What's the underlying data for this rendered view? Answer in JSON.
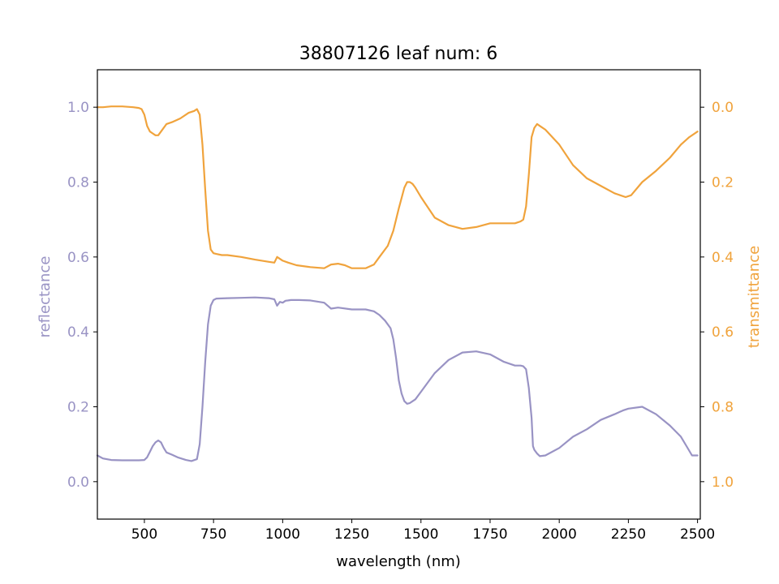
{
  "chart_data": {
    "type": "line",
    "title": "38807126 leaf num: 6",
    "xlabel": "wavelength (nm)",
    "ylabel_left": "reflectance",
    "ylabel_right": "transmittance",
    "xlim": [
      330,
      2510
    ],
    "ylim_left": [
      -0.1,
      1.1
    ],
    "ylim_right": [
      1.1,
      -0.1
    ],
    "right_axis_inverted": true,
    "x_ticks": [
      500,
      750,
      1000,
      1250,
      1500,
      1750,
      2000,
      2250,
      2500
    ],
    "x_tick_labels": [
      "500",
      "750",
      "1000",
      "1250",
      "1500",
      "1750",
      "2000",
      "2250",
      "2500"
    ],
    "y_ticks_left": [
      0.0,
      0.2,
      0.4,
      0.6,
      0.8,
      1.0
    ],
    "y_tick_labels_left": [
      "0.0",
      "0.2",
      "0.4",
      "0.6",
      "0.8",
      "1.0"
    ],
    "y_ticks_right": [
      0.0,
      0.2,
      0.4,
      0.6,
      0.8,
      1.0
    ],
    "y_tick_labels_right": [
      "0.0",
      "0.2",
      "0.4",
      "0.6",
      "0.8",
      "1.0"
    ],
    "grid": false,
    "legend": "none",
    "colors": {
      "reflectance": "#9993c4",
      "transmittance": "#f0a33c"
    },
    "series": [
      {
        "axis": "left",
        "color": "#9993c4",
        "x": [
          330,
          350,
          380,
          420,
          450,
          480,
          500,
          510,
          520,
          530,
          540,
          550,
          560,
          570,
          580,
          600,
          620,
          650,
          670,
          690,
          700,
          710,
          720,
          730,
          740,
          750,
          760,
          800,
          850,
          900,
          950,
          970,
          980,
          990,
          1000,
          1010,
          1020,
          1030,
          1060,
          1100,
          1150,
          1175,
          1200,
          1250,
          1300,
          1330,
          1350,
          1370,
          1390,
          1400,
          1410,
          1420,
          1430,
          1440,
          1450,
          1460,
          1480,
          1500,
          1550,
          1600,
          1650,
          1700,
          1750,
          1800,
          1840,
          1860,
          1870,
          1880,
          1890,
          1900,
          1905,
          1910,
          1920,
          1930,
          1950,
          2000,
          2050,
          2100,
          2150,
          2200,
          2230,
          2250,
          2300,
          2350,
          2400,
          2440,
          2460,
          2480,
          2500
        ],
        "y": [
          0.07,
          0.062,
          0.058,
          0.057,
          0.057,
          0.057,
          0.058,
          0.065,
          0.08,
          0.095,
          0.105,
          0.11,
          0.105,
          0.09,
          0.078,
          0.072,
          0.065,
          0.058,
          0.055,
          0.06,
          0.1,
          0.2,
          0.32,
          0.42,
          0.47,
          0.485,
          0.489,
          0.49,
          0.491,
          0.492,
          0.49,
          0.487,
          0.47,
          0.48,
          0.478,
          0.483,
          0.484,
          0.485,
          0.485,
          0.484,
          0.478,
          0.462,
          0.465,
          0.46,
          0.46,
          0.455,
          0.445,
          0.43,
          0.41,
          0.38,
          0.33,
          0.27,
          0.235,
          0.215,
          0.208,
          0.21,
          0.22,
          0.24,
          0.29,
          0.325,
          0.345,
          0.348,
          0.34,
          0.32,
          0.31,
          0.31,
          0.308,
          0.3,
          0.25,
          0.17,
          0.095,
          0.085,
          0.075,
          0.068,
          0.07,
          0.09,
          0.12,
          0.14,
          0.165,
          0.18,
          0.19,
          0.195,
          0.2,
          0.18,
          0.15,
          0.12,
          0.095,
          0.07,
          0.07
        ]
      },
      {
        "axis": "right",
        "color": "#f0a33c",
        "x": [
          330,
          350,
          380,
          420,
          460,
          480,
          490,
          500,
          510,
          520,
          530,
          540,
          550,
          560,
          580,
          600,
          630,
          660,
          680,
          690,
          700,
          710,
          720,
          730,
          740,
          750,
          760,
          780,
          800,
          850,
          900,
          950,
          970,
          980,
          1000,
          1020,
          1050,
          1100,
          1150,
          1175,
          1200,
          1225,
          1250,
          1300,
          1330,
          1350,
          1380,
          1400,
          1420,
          1440,
          1450,
          1460,
          1470,
          1480,
          1500,
          1550,
          1600,
          1650,
          1700,
          1750,
          1800,
          1840,
          1860,
          1870,
          1880,
          1890,
          1900,
          1910,
          1920,
          1930,
          1950,
          2000,
          2050,
          2100,
          2150,
          2200,
          2240,
          2260,
          2300,
          2350,
          2400,
          2440,
          2470,
          2500
        ],
        "y": [
          0.0,
          0.0,
          -0.002,
          -0.002,
          0.0,
          0.002,
          0.005,
          0.02,
          0.05,
          0.065,
          0.07,
          0.075,
          0.075,
          0.065,
          0.045,
          0.04,
          0.03,
          0.015,
          0.01,
          0.005,
          0.02,
          0.1,
          0.22,
          0.33,
          0.38,
          0.39,
          0.392,
          0.395,
          0.395,
          0.4,
          0.407,
          0.413,
          0.415,
          0.4,
          0.41,
          0.415,
          0.422,
          0.427,
          0.43,
          0.42,
          0.418,
          0.422,
          0.43,
          0.43,
          0.42,
          0.4,
          0.37,
          0.33,
          0.27,
          0.215,
          0.2,
          0.2,
          0.205,
          0.215,
          0.24,
          0.295,
          0.315,
          0.325,
          0.32,
          0.31,
          0.31,
          0.31,
          0.305,
          0.3,
          0.265,
          0.18,
          0.08,
          0.055,
          0.045,
          0.05,
          0.06,
          0.1,
          0.155,
          0.19,
          0.21,
          0.23,
          0.24,
          0.235,
          0.2,
          0.17,
          0.135,
          0.1,
          0.08,
          0.065
        ]
      }
    ]
  }
}
